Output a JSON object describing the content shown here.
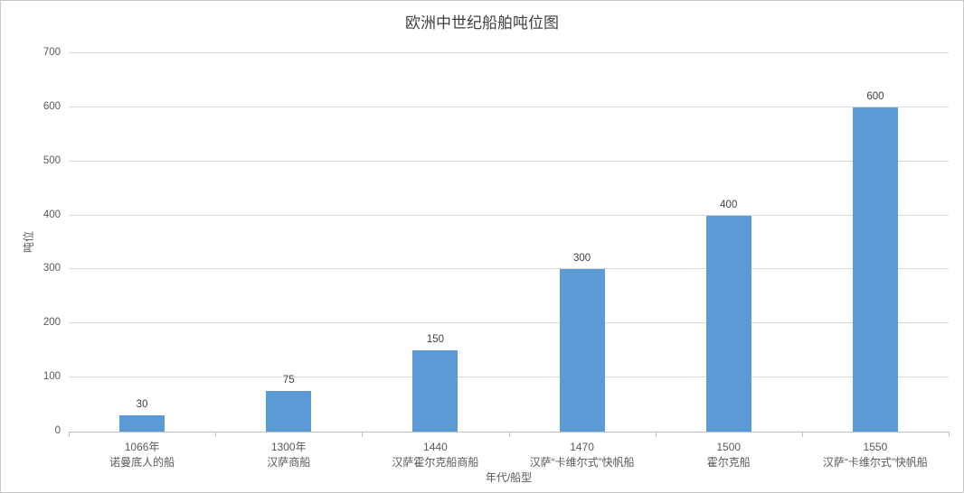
{
  "chart_data": {
    "type": "bar",
    "title": "欧洲中世纪船舶吨位图",
    "xlabel": "年代/船型",
    "ylabel": "吨位",
    "categories": [
      [
        "1066年",
        "诺曼底人的船"
      ],
      [
        "1300年",
        "汉萨商船"
      ],
      [
        "1440",
        "汉萨霍尔克船商船"
      ],
      [
        "1470",
        "汉萨“卡维尔式”快帆船"
      ],
      [
        "1500",
        "霍尔克船"
      ],
      [
        "1550",
        "汉萨“卡维尔式”快帆船"
      ]
    ],
    "values": [
      30,
      75,
      150,
      300,
      400,
      600
    ],
    "ylim": [
      0,
      700
    ],
    "yticks": [
      0,
      100,
      200,
      300,
      400,
      500,
      600,
      700
    ],
    "grid": true,
    "legend": "none",
    "data_labels": true,
    "bar_color": "#5b9bd5",
    "gridline_color": "#d9d9d9",
    "axis_line_color": "#bfbfbf",
    "tick_text_color": "#595959",
    "data_label_color": "#404040",
    "title_color": "#404040",
    "background_color": "#ffffff"
  }
}
